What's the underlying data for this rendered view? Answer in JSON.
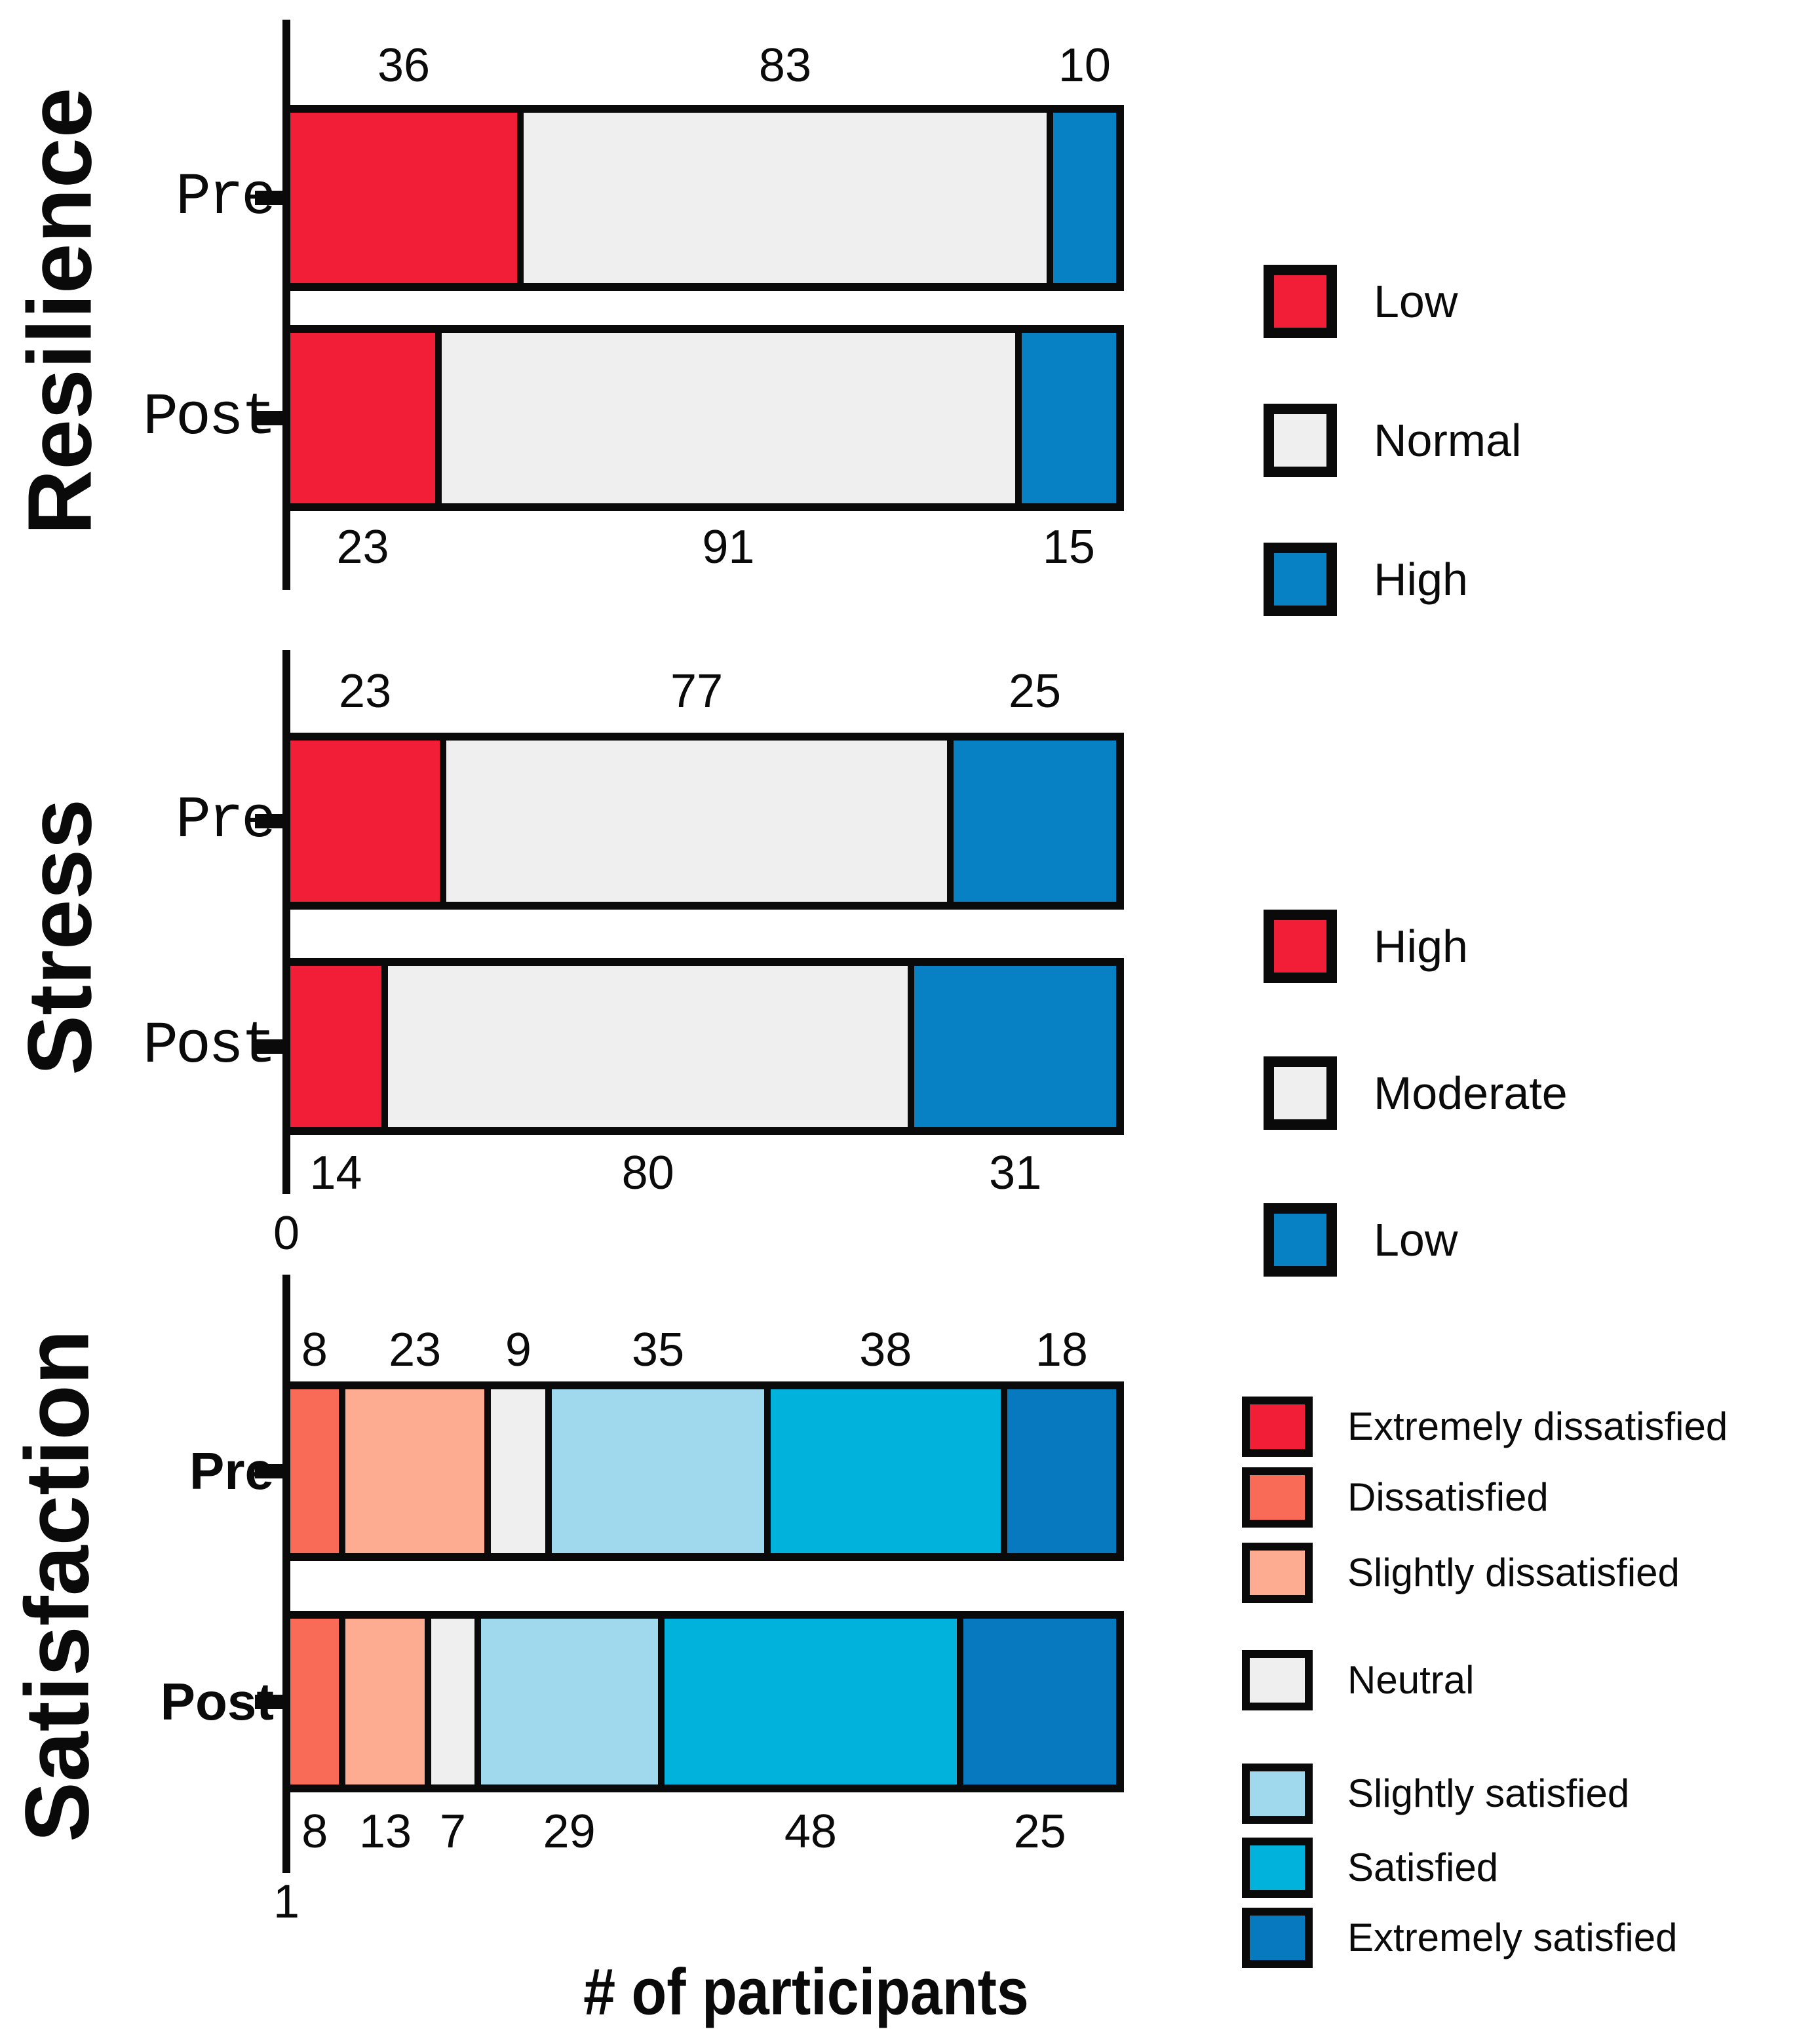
{
  "figure": {
    "xaxis_title": "# of participants"
  },
  "panels": [
    {
      "title": "Resilience",
      "origin_label": "",
      "rows": [
        {
          "label": "Pre",
          "values": [
            36,
            83,
            10
          ]
        },
        {
          "label": "Post",
          "values": [
            23,
            91,
            15
          ]
        }
      ],
      "segment_colors": [
        "#F21E37",
        "#EFEFEF",
        "#0880C4"
      ],
      "segment_keys": [
        "low",
        "normal",
        "high"
      ],
      "legend": [
        {
          "label": "Low",
          "color": "#F21E37"
        },
        {
          "label": "Normal",
          "color": "#EFEFEF"
        },
        {
          "label": "High",
          "color": "#0880C4"
        }
      ]
    },
    {
      "title": "Stress",
      "origin_label": "0",
      "rows": [
        {
          "label": "Pre",
          "values": [
            23,
            77,
            25
          ]
        },
        {
          "label": "Post",
          "values": [
            14,
            80,
            31
          ]
        }
      ],
      "segment_colors": [
        "#F21E37",
        "#EFEFEF",
        "#0880C4"
      ],
      "segment_keys": [
        "high",
        "moderate",
        "low"
      ],
      "legend": [
        {
          "label": "High",
          "color": "#F21E37"
        },
        {
          "label": "Moderate",
          "color": "#EFEFEF"
        },
        {
          "label": "Low",
          "color": "#0880C4"
        }
      ]
    },
    {
      "title": "Satisfaction",
      "origin_label": "1",
      "rows": [
        {
          "label": "Pre",
          "values": [
            8,
            23,
            9,
            35,
            38,
            18
          ]
        },
        {
          "label": "Post",
          "values": [
            8,
            13,
            7,
            29,
            48,
            25
          ]
        }
      ],
      "segment_colors": [
        "#FA6B57",
        "#FDAC91",
        "#EFEFEF",
        "#A0D9EE",
        "#00B2DC",
        "#0779BE"
      ],
      "segment_keys": [
        "dissatisfied",
        "slightly-dissatisfied",
        "neutral",
        "slightly-satisfied",
        "satisfied",
        "extremely-satisfied"
      ],
      "legend": [
        {
          "label": "Extremely dissatisfied",
          "color": "#F21E37"
        },
        {
          "label": "Dissatisfied",
          "color": "#FA6B57"
        },
        {
          "label": "Slightly dissatisfied",
          "color": "#FDAC91"
        },
        {
          "label": "Neutral",
          "color": "#EFEFEF"
        },
        {
          "label": "Slightly satisfied",
          "color": "#A0D9EE"
        },
        {
          "label": "Satisfied",
          "color": "#00B2DC"
        },
        {
          "label": "Extremely satisfied",
          "color": "#0779BE"
        }
      ]
    }
  ],
  "chart_data": [
    {
      "type": "bar",
      "subtype": "stacked-horizontal",
      "title": "Resilience",
      "categories": [
        "Pre",
        "Post"
      ],
      "series": [
        {
          "name": "Low",
          "color": "#F21E37",
          "values": [
            36,
            23
          ]
        },
        {
          "name": "Normal",
          "color": "#EFEFEF",
          "values": [
            83,
            91
          ]
        },
        {
          "name": "High",
          "color": "#0880C4",
          "values": [
            10,
            15
          ]
        }
      ],
      "xlabel": "# of participants",
      "value_labels": "Pre values above bar, Post values below bar",
      "legend_position": "right",
      "grid": false
    },
    {
      "type": "bar",
      "subtype": "stacked-horizontal",
      "title": "Stress",
      "categories": [
        "Pre",
        "Post"
      ],
      "series": [
        {
          "name": "High",
          "color": "#F21E37",
          "values": [
            23,
            14
          ]
        },
        {
          "name": "Moderate",
          "color": "#EFEFEF",
          "values": [
            77,
            80
          ]
        },
        {
          "name": "Low",
          "color": "#0880C4",
          "values": [
            25,
            31
          ]
        }
      ],
      "xlabel": "# of participants",
      "axis_origin_label": "0",
      "value_labels": "Pre values above bar, Post values below bar",
      "legend_position": "right",
      "grid": false
    },
    {
      "type": "bar",
      "subtype": "stacked-horizontal",
      "title": "Satisfaction",
      "categories": [
        "Pre",
        "Post"
      ],
      "series": [
        {
          "name": "Extremely dissatisfied",
          "color": "#F21E37",
          "values": [
            0,
            0
          ]
        },
        {
          "name": "Dissatisfied",
          "color": "#FA6B57",
          "values": [
            8,
            8
          ]
        },
        {
          "name": "Slightly dissatisfied",
          "color": "#FDAC91",
          "values": [
            23,
            13
          ]
        },
        {
          "name": "Neutral",
          "color": "#EFEFEF",
          "values": [
            9,
            7
          ]
        },
        {
          "name": "Slightly satisfied",
          "color": "#A0D9EE",
          "values": [
            35,
            29
          ]
        },
        {
          "name": "Satisfied",
          "color": "#00B2DC",
          "values": [
            38,
            48
          ]
        },
        {
          "name": "Extremely satisfied",
          "color": "#0779BE",
          "values": [
            18,
            25
          ]
        }
      ],
      "xlabel": "# of participants",
      "axis_origin_label": "1",
      "value_labels": "Pre values above bar, Post values below bar",
      "legend_position": "right",
      "grid": false
    }
  ]
}
